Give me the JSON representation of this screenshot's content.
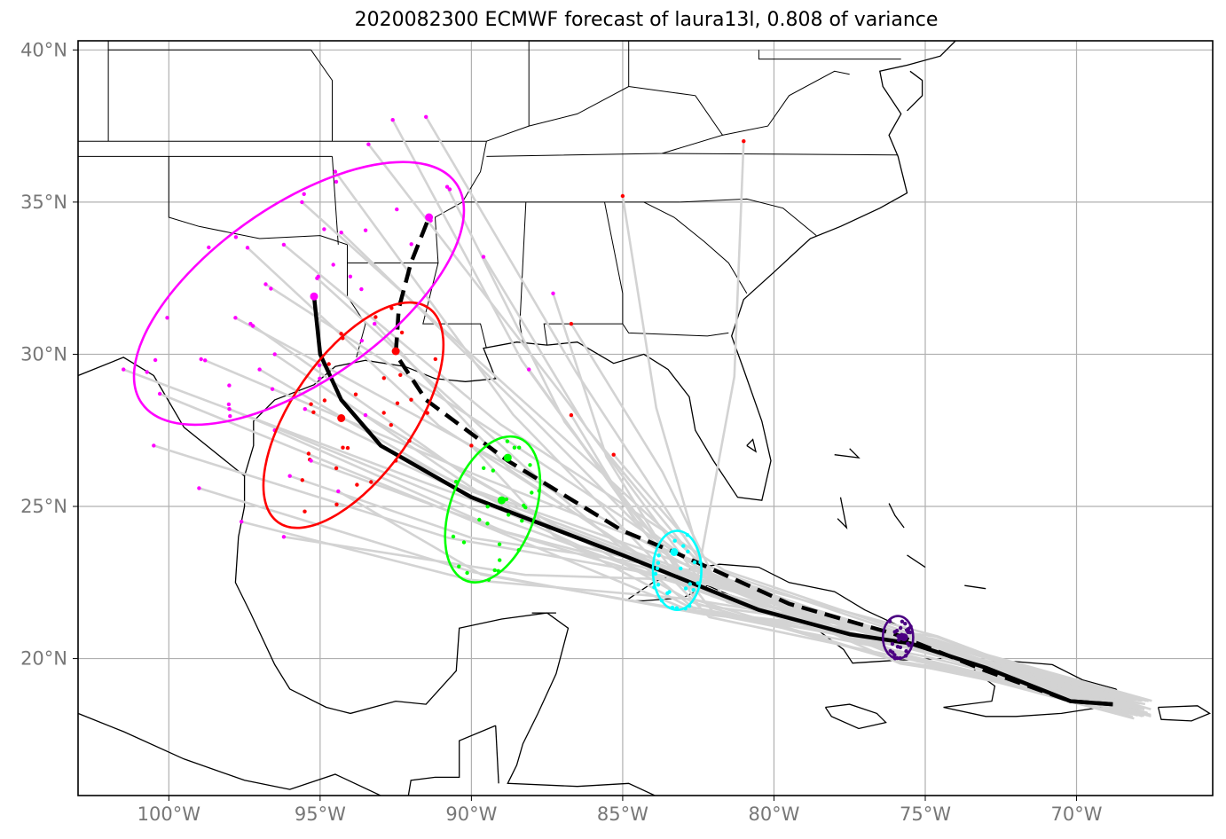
{
  "title": "2020082300 ECMWF forecast of laura13l, 0.808 of variance",
  "map": {
    "lon_range": [
      -103,
      -65.5
    ],
    "lat_range": [
      15.5,
      40.3
    ],
    "xticks": [
      {
        "lon": -100,
        "label": "100°W"
      },
      {
        "lon": -95,
        "label": "95°W"
      },
      {
        "lon": -90,
        "label": "90°W"
      },
      {
        "lon": -85,
        "label": "85°W"
      },
      {
        "lon": -80,
        "label": "80°W"
      },
      {
        "lon": -75,
        "label": "75°W"
      },
      {
        "lon": -70,
        "label": "70°W"
      }
    ],
    "yticks": [
      {
        "lat": 20,
        "label": "20°N"
      },
      {
        "lat": 25,
        "label": "25°N"
      },
      {
        "lat": 30,
        "label": "30°N"
      },
      {
        "lat": 35,
        "label": "35°N"
      },
      {
        "lat": 40,
        "label": "40°N"
      }
    ],
    "grid": true
  },
  "colors": {
    "member_track": "#d3d3d3",
    "mean_track": "#000000",
    "land_outline": "#000000",
    "grid": "#b0b0b0",
    "day1": "#4b0082",
    "day2": "#00ffff",
    "day3": "#00ff00",
    "day4": "#ff0000",
    "day5": "#ff00ff"
  },
  "tracks": {
    "solid_mean": [
      [
        -68.8,
        18.5
      ],
      [
        -70.2,
        18.6
      ],
      [
        -73.0,
        19.7
      ],
      [
        -75.5,
        20.5
      ],
      [
        -77.5,
        20.8
      ],
      [
        -80.5,
        21.6
      ],
      [
        -85.0,
        23.4
      ],
      [
        -90.0,
        25.3
      ],
      [
        -93.0,
        27.0
      ],
      [
        -94.3,
        28.5
      ],
      [
        -95.0,
        30.0
      ],
      [
        -95.2,
        31.9
      ]
    ],
    "dashed_mean": [
      [
        -68.8,
        18.5
      ],
      [
        -70.2,
        18.6
      ],
      [
        -73.0,
        19.6
      ],
      [
        -76.0,
        20.8
      ],
      [
        -79.5,
        21.8
      ],
      [
        -83.3,
        23.5
      ],
      [
        -85.0,
        24.2
      ],
      [
        -88.8,
        26.5
      ],
      [
        -91.5,
        28.5
      ],
      [
        -92.5,
        30.0
      ],
      [
        -92.4,
        31.5
      ],
      [
        -92.0,
        33.0
      ],
      [
        -91.4,
        34.5
      ]
    ]
  },
  "ellipses": [
    {
      "name": "day1",
      "lon": -75.9,
      "lat": 20.7,
      "rx_deg": 0.5,
      "ry_deg": 0.7,
      "angle": 0
    },
    {
      "name": "day2",
      "lon": -83.2,
      "lat": 22.9,
      "rx_deg": 0.8,
      "ry_deg": 1.3,
      "angle": 0
    },
    {
      "name": "day3",
      "lon": -89.3,
      "lat": 24.9,
      "rx_deg": 1.4,
      "ry_deg": 2.5,
      "angle": 20
    },
    {
      "name": "day4",
      "lon": -93.9,
      "lat": 28.0,
      "rx_deg": 2.0,
      "ry_deg": 4.3,
      "angle": 35
    },
    {
      "name": "day5",
      "lon": -95.7,
      "lat": 32.0,
      "rx_deg": 2.9,
      "ry_deg": 6.3,
      "angle": 55
    }
  ],
  "mean_markers": [
    {
      "name": "day1",
      "lon": -75.7,
      "lat": 20.7
    },
    {
      "name": "day2",
      "lon": -83.3,
      "lat": 23.5
    },
    {
      "name": "day3",
      "lon": -89.0,
      "lat": 25.2
    },
    {
      "name": "day3",
      "lon": -88.8,
      "lat": 26.6
    },
    {
      "name": "day4",
      "lon": -94.3,
      "lat": 27.9
    },
    {
      "name": "day4",
      "lon": -92.5,
      "lat": 30.1
    },
    {
      "name": "day5",
      "lon": -95.2,
      "lat": 31.9
    },
    {
      "name": "day5",
      "lon": -91.4,
      "lat": 34.5
    }
  ]
}
